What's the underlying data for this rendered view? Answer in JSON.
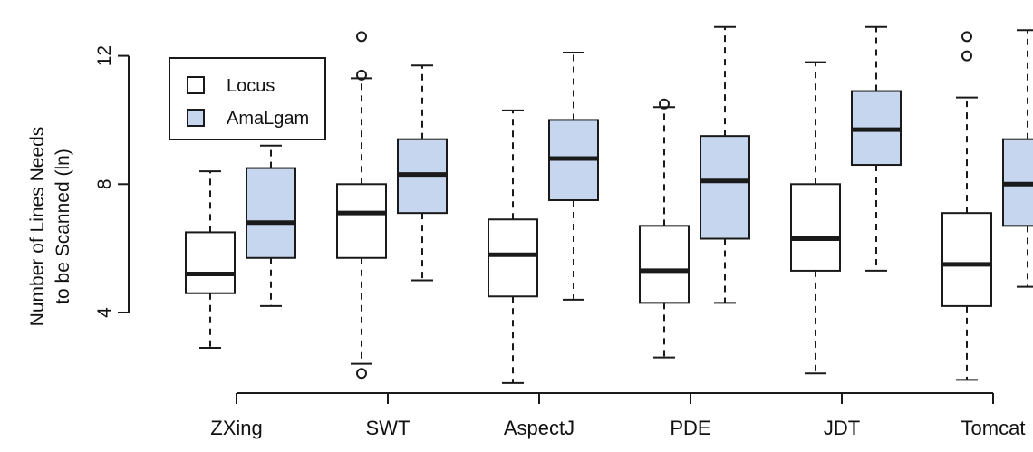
{
  "chart_data": {
    "type": "box",
    "title": "",
    "xlabel": "",
    "ylabel_line1": "Number of Lines Needs",
    "ylabel_line2": "to be Scanned (ln)",
    "ylim": [
      1.6,
      13.4
    ],
    "yticks": [
      4,
      8,
      12
    ],
    "ytick_labels": [
      "4",
      "8",
      "12"
    ],
    "categories": [
      "ZXing",
      "SWT",
      "AspectJ",
      "PDE",
      "JDT",
      "Tomcat"
    ],
    "legend": {
      "position": "top-left",
      "items": [
        "Locus",
        "AmaLgam"
      ]
    },
    "colors": {
      "Locus": "#ffffff",
      "AmaLgam": "#c5d6ee",
      "stroke": "#1a1a1a"
    },
    "series": [
      {
        "name": "Locus",
        "boxes": [
          {
            "min": 2.9,
            "q1": 4.6,
            "median": 5.2,
            "q3": 6.5,
            "max": 8.4,
            "outliers": []
          },
          {
            "min": 2.4,
            "q1": 5.7,
            "median": 7.1,
            "q3": 8.0,
            "max": 11.3,
            "outliers": [
              12.6,
              11.4,
              2.1
            ]
          },
          {
            "min": 1.8,
            "q1": 4.5,
            "median": 5.8,
            "q3": 6.9,
            "max": 10.3,
            "outliers": []
          },
          {
            "min": 2.6,
            "q1": 4.3,
            "median": 5.3,
            "q3": 6.7,
            "max": 10.4,
            "outliers": [
              10.5
            ]
          },
          {
            "min": 2.1,
            "q1": 5.3,
            "median": 6.3,
            "q3": 8.0,
            "max": 11.8,
            "outliers": []
          },
          {
            "min": 1.9,
            "q1": 4.2,
            "median": 5.5,
            "q3": 7.1,
            "max": 10.7,
            "outliers": [
              12.6,
              12.0
            ]
          }
        ]
      },
      {
        "name": "AmaLgam",
        "boxes": [
          {
            "min": 4.2,
            "q1": 5.7,
            "median": 6.8,
            "q3": 8.5,
            "max": 9.2,
            "outliers": []
          },
          {
            "min": 5.0,
            "q1": 7.1,
            "median": 8.3,
            "q3": 9.4,
            "max": 11.7,
            "outliers": []
          },
          {
            "min": 4.4,
            "q1": 7.5,
            "median": 8.8,
            "q3": 10.0,
            "max": 12.1,
            "outliers": []
          },
          {
            "min": 4.3,
            "q1": 6.3,
            "median": 8.1,
            "q3": 9.5,
            "max": 12.9,
            "outliers": []
          },
          {
            "min": 5.3,
            "q1": 8.6,
            "median": 9.7,
            "q3": 10.9,
            "max": 12.9,
            "outliers": []
          },
          {
            "min": 4.8,
            "q1": 6.7,
            "median": 8.0,
            "q3": 9.4,
            "max": 12.8,
            "outliers": []
          }
        ]
      }
    ]
  }
}
